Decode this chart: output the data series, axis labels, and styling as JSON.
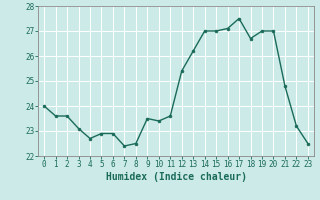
{
  "x": [
    0,
    1,
    2,
    3,
    4,
    5,
    6,
    7,
    8,
    9,
    10,
    11,
    12,
    13,
    14,
    15,
    16,
    17,
    18,
    19,
    20,
    21,
    22,
    23
  ],
  "y": [
    24.0,
    23.6,
    23.6,
    23.1,
    22.7,
    22.9,
    22.9,
    22.4,
    22.5,
    23.5,
    23.4,
    23.6,
    25.4,
    26.2,
    27.0,
    27.0,
    27.1,
    27.5,
    26.7,
    27.0,
    27.0,
    24.8,
    23.2,
    22.5
  ],
  "line_color": "#1a6b5a",
  "marker": "o",
  "markersize": 2.0,
  "linewidth": 1.0,
  "bg_color": "#cceae7",
  "grid_color": "#ffffff",
  "xlabel": "Humidex (Indice chaleur)",
  "ylim": [
    22,
    28
  ],
  "xlim": [
    -0.5,
    23.5
  ],
  "yticks": [
    22,
    23,
    24,
    25,
    26,
    27,
    28
  ],
  "xticks": [
    0,
    1,
    2,
    3,
    4,
    5,
    6,
    7,
    8,
    9,
    10,
    11,
    12,
    13,
    14,
    15,
    16,
    17,
    18,
    19,
    20,
    21,
    22,
    23
  ],
  "tick_fontsize": 5.5,
  "xlabel_fontsize": 7.0,
  "tick_color": "#1a6b5a",
  "axis_color": "#1a6b5a",
  "spine_color": "#888888"
}
